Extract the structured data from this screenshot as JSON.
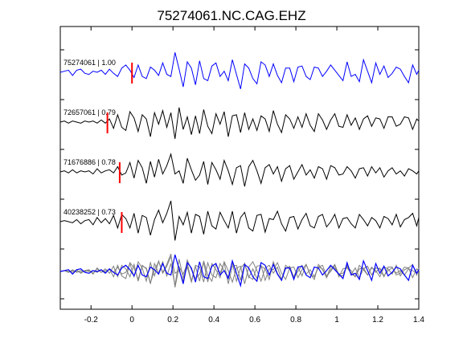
{
  "chart_data": {
    "type": "line",
    "title": "75274061.NC.CAG.EHZ",
    "xlabel": "",
    "ylabel": "",
    "xlim": [
      -0.35,
      1.4
    ],
    "x_ticks": [
      "-0.2",
      "0",
      "0.2",
      "0.4",
      "0.6",
      "0.8",
      "1",
      "1.2",
      "1.4"
    ],
    "x_tick_values": [
      -0.2,
      0,
      0.2,
      0.4,
      0.6,
      0.8,
      1.0,
      1.2,
      1.4
    ],
    "grid": false,
    "colors": {
      "reference": "#0000ff",
      "match": "#000000",
      "overlay": "#808080",
      "pick": "#ff0000"
    },
    "series": [
      {
        "name": "75274061 | 1.00",
        "color": "#0000ff",
        "pick_time": 0.0,
        "times": [
          -0.35,
          -0.33,
          -0.31,
          -0.29,
          -0.27,
          -0.25,
          -0.23,
          -0.21,
          -0.19,
          -0.17,
          -0.15,
          -0.13,
          -0.11,
          -0.09,
          -0.07,
          -0.05,
          -0.03,
          -0.01,
          0.01,
          0.03,
          0.05,
          0.07,
          0.09,
          0.11,
          0.13,
          0.15,
          0.17,
          0.19,
          0.21,
          0.23,
          0.25,
          0.27,
          0.29,
          0.31,
          0.33,
          0.35,
          0.37,
          0.39,
          0.41,
          0.43,
          0.45,
          0.47,
          0.49,
          0.51,
          0.53,
          0.55,
          0.57,
          0.59,
          0.61,
          0.63,
          0.65,
          0.67,
          0.69,
          0.71,
          0.73,
          0.75,
          0.77,
          0.79,
          0.81,
          0.83,
          0.85,
          0.87,
          0.89,
          0.91,
          0.93,
          0.95,
          0.97,
          0.99,
          1.01,
          1.03,
          1.05,
          1.07,
          1.09,
          1.11,
          1.13,
          1.15,
          1.17,
          1.19,
          1.21,
          1.23,
          1.25,
          1.27,
          1.29,
          1.31,
          1.33,
          1.35,
          1.37,
          1.39,
          1.4
        ],
        "values": [
          0.0,
          0.05,
          0.1,
          -0.15,
          0.1,
          0.15,
          -0.05,
          -0.1,
          0.05,
          0.0,
          0.1,
          -0.1,
          0.15,
          -0.05,
          -0.2,
          0.2,
          0.35,
          0.1,
          -0.25,
          0.35,
          -0.2,
          -0.3,
          0.25,
          0.1,
          -0.15,
          0.45,
          -0.1,
          -0.2,
          0.95,
          0.15,
          -0.7,
          0.5,
          0.2,
          -0.6,
          0.55,
          -0.3,
          -0.4,
          0.3,
          0.45,
          -0.2,
          0.05,
          -0.4,
          0.6,
          -0.1,
          -0.8,
          0.4,
          0.2,
          -0.3,
          -0.55,
          0.5,
          0.35,
          -0.2,
          0.4,
          -0.15,
          -0.5,
          0.2,
          0.2,
          -0.45,
          0.25,
          0.3,
          -0.2,
          -0.35,
          0.25,
          0.2,
          -0.2,
          0.05,
          0.35,
          0.1,
          -0.15,
          -0.4,
          0.5,
          -0.2,
          -0.1,
          -0.45,
          0.6,
          0.05,
          -0.5,
          0.45,
          -0.1,
          0.3,
          -0.25,
          -0.05,
          0.25,
          0.15,
          -0.2,
          -0.5,
          0.35,
          -0.1,
          0.1
        ]
      },
      {
        "name": "72657061 | 0.79",
        "color": "#000000",
        "pick_time": -0.12,
        "times": [
          -0.35,
          -0.33,
          -0.31,
          -0.29,
          -0.27,
          -0.25,
          -0.23,
          -0.21,
          -0.19,
          -0.17,
          -0.15,
          -0.13,
          -0.11,
          -0.09,
          -0.07,
          -0.05,
          -0.03,
          -0.01,
          0.01,
          0.03,
          0.05,
          0.07,
          0.09,
          0.11,
          0.13,
          0.15,
          0.17,
          0.19,
          0.21,
          0.23,
          0.25,
          0.27,
          0.29,
          0.31,
          0.33,
          0.35,
          0.37,
          0.39,
          0.41,
          0.43,
          0.45,
          0.47,
          0.49,
          0.51,
          0.53,
          0.55,
          0.57,
          0.59,
          0.61,
          0.63,
          0.65,
          0.67,
          0.69,
          0.71,
          0.73,
          0.75,
          0.77,
          0.79,
          0.81,
          0.83,
          0.85,
          0.87,
          0.89,
          0.91,
          0.93,
          0.95,
          0.97,
          0.99,
          1.01,
          1.03,
          1.05,
          1.07,
          1.09,
          1.11,
          1.13,
          1.15,
          1.17,
          1.19,
          1.21,
          1.23,
          1.25,
          1.27,
          1.29,
          1.31,
          1.33,
          1.35,
          1.37,
          1.39,
          1.4
        ],
        "values": [
          0.0,
          0.05,
          -0.05,
          0.05,
          0.0,
          -0.05,
          0.05,
          0.0,
          0.05,
          -0.05,
          0.1,
          -0.05,
          0.15,
          -0.3,
          0.35,
          -0.25,
          -0.4,
          0.5,
          0.2,
          -0.45,
          0.35,
          0.15,
          -0.7,
          0.45,
          -0.1,
          0.55,
          -0.25,
          0.45,
          -0.8,
          0.7,
          -0.35,
          0.25,
          -0.6,
          0.3,
          -0.55,
          0.6,
          -0.2,
          -0.55,
          0.4,
          -0.1,
          0.5,
          -0.7,
          0.3,
          0.35,
          -0.5,
          0.45,
          -0.35,
          0.15,
          -0.4,
          0.3,
          0.15,
          -0.45,
          0.55,
          -0.1,
          -0.5,
          0.35,
          0.15,
          -0.3,
          0.25,
          -0.25,
          0.4,
          -0.15,
          -0.45,
          0.4,
          0.1,
          -0.35,
          0.1,
          0.4,
          -0.2,
          -0.25,
          0.35,
          -0.15,
          0.2,
          -0.35,
          0.15,
          0.3,
          -0.2,
          0.2,
          0.15,
          -0.3,
          0.25,
          0.25,
          -0.2,
          -0.1,
          0.25,
          0.2,
          -0.35,
          0.15,
          0.05
        ]
      },
      {
        "name": "71676886 | 0.78",
        "color": "#000000",
        "pick_time": -0.06,
        "times": [
          -0.35,
          -0.33,
          -0.31,
          -0.29,
          -0.27,
          -0.25,
          -0.23,
          -0.21,
          -0.19,
          -0.17,
          -0.15,
          -0.13,
          -0.11,
          -0.09,
          -0.07,
          -0.05,
          -0.03,
          -0.01,
          0.01,
          0.03,
          0.05,
          0.07,
          0.09,
          0.11,
          0.13,
          0.15,
          0.17,
          0.19,
          0.21,
          0.23,
          0.25,
          0.27,
          0.29,
          0.31,
          0.33,
          0.35,
          0.37,
          0.39,
          0.41,
          0.43,
          0.45,
          0.47,
          0.49,
          0.51,
          0.53,
          0.55,
          0.57,
          0.59,
          0.61,
          0.63,
          0.65,
          0.67,
          0.69,
          0.71,
          0.73,
          0.75,
          0.77,
          0.79,
          0.81,
          0.83,
          0.85,
          0.87,
          0.89,
          0.91,
          0.93,
          0.95,
          0.97,
          0.99,
          1.01,
          1.03,
          1.05,
          1.07,
          1.09,
          1.11,
          1.13,
          1.15,
          1.17,
          1.19,
          1.21,
          1.23,
          1.25,
          1.27,
          1.29,
          1.31,
          1.33,
          1.35,
          1.37,
          1.39,
          1.4
        ],
        "values": [
          0.0,
          0.05,
          -0.05,
          0.1,
          -0.05,
          0.05,
          0.0,
          0.05,
          -0.1,
          0.15,
          -0.05,
          0.05,
          0.1,
          -0.05,
          0.25,
          -0.15,
          -0.05,
          0.45,
          -0.3,
          0.55,
          0.2,
          -0.55,
          0.5,
          -0.25,
          0.6,
          -0.1,
          0.3,
          0.85,
          -0.1,
          0.05,
          -0.55,
          0.65,
          0.1,
          -0.4,
          -0.15,
          0.5,
          -0.6,
          0.45,
          0.1,
          -0.35,
          0.55,
          0.05,
          -0.6,
          0.2,
          0.3,
          -0.7,
          0.25,
          0.55,
          0.05,
          -0.55,
          0.2,
          0.35,
          -0.1,
          0.25,
          -0.45,
          0.15,
          0.3,
          -0.35,
          0.0,
          0.35,
          -0.15,
          0.1,
          -0.3,
          0.25,
          0.15,
          -0.35,
          0.3,
          0.2,
          -0.15,
          -0.1,
          0.25,
          0.05,
          -0.3,
          0.15,
          0.2,
          -0.2,
          0.25,
          -0.05,
          0.2,
          -0.25,
          0.05,
          0.2,
          -0.1,
          0.05,
          -0.2,
          0.15,
          0.05,
          -0.1,
          0.05
        ]
      },
      {
        "name": "40238252 | 0.73",
        "color": "#000000",
        "pick_time": -0.05,
        "times": [
          -0.35,
          -0.33,
          -0.31,
          -0.29,
          -0.27,
          -0.25,
          -0.23,
          -0.21,
          -0.19,
          -0.17,
          -0.15,
          -0.13,
          -0.11,
          -0.09,
          -0.07,
          -0.05,
          -0.03,
          -0.01,
          0.01,
          0.03,
          0.05,
          0.07,
          0.09,
          0.11,
          0.13,
          0.15,
          0.17,
          0.19,
          0.21,
          0.23,
          0.25,
          0.27,
          0.29,
          0.31,
          0.33,
          0.35,
          0.37,
          0.39,
          0.41,
          0.43,
          0.45,
          0.47,
          0.49,
          0.51,
          0.53,
          0.55,
          0.57,
          0.59,
          0.61,
          0.63,
          0.65,
          0.67,
          0.69,
          0.71,
          0.73,
          0.75,
          0.77,
          0.79,
          0.81,
          0.83,
          0.85,
          0.87,
          0.89,
          0.91,
          0.93,
          0.95,
          0.97,
          0.99,
          1.01,
          1.03,
          1.05,
          1.07,
          1.09,
          1.11,
          1.13,
          1.15,
          1.17,
          1.19,
          1.21,
          1.23,
          1.25,
          1.27,
          1.29,
          1.31,
          1.33,
          1.35,
          1.37,
          1.39,
          1.4
        ],
        "values": [
          0.0,
          0.05,
          0.0,
          -0.05,
          0.1,
          -0.1,
          0.05,
          0.1,
          -0.15,
          0.2,
          -0.05,
          0.15,
          -0.1,
          0.3,
          -0.3,
          0.35,
          0.15,
          -0.3,
          0.4,
          -0.55,
          0.3,
          0.2,
          -0.65,
          0.1,
          0.55,
          -0.05,
          0.4,
          1.0,
          -0.9,
          0.25,
          -0.15,
          0.45,
          -0.55,
          0.35,
          0.25,
          -0.6,
          0.5,
          -0.2,
          -0.35,
          0.45,
          0.05,
          -0.3,
          0.5,
          -0.55,
          0.2,
          0.45,
          -0.3,
          -0.45,
          0.3,
          0.35,
          -0.5,
          0.15,
          0.1,
          0.5,
          -0.1,
          -0.45,
          0.2,
          0.25,
          -0.35,
          0.1,
          0.4,
          -0.2,
          -0.3,
          0.25,
          0.35,
          -0.25,
          0.0,
          0.35,
          -0.3,
          0.15,
          0.2,
          -0.1,
          -0.3,
          0.35,
          0.1,
          -0.2,
          0.2,
          0.05,
          -0.3,
          0.25,
          0.15,
          -0.15,
          0.35,
          -0.25,
          0.1,
          0.2,
          0.4,
          -0.2,
          0.2
        ]
      }
    ]
  }
}
